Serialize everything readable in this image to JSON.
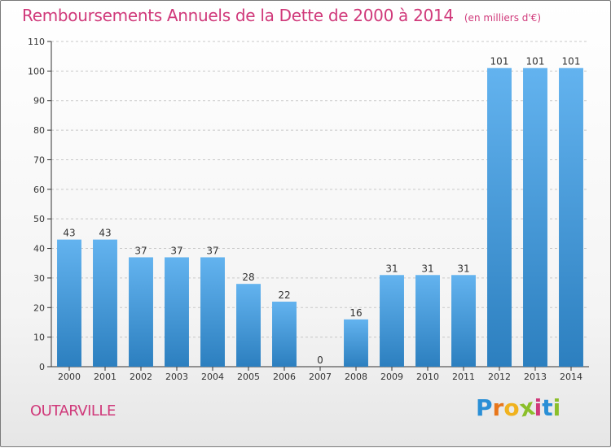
{
  "header": {
    "title": "Remboursements Annuels de la Dette de 2000 à 2014",
    "unit": "(en milliers d'€)"
  },
  "footer": {
    "commune": "OUTARVILLE",
    "brand_letters": [
      "P",
      "r",
      "o",
      "x",
      "i",
      "t",
      "i"
    ],
    "brand_colors": [
      "#2a8fd6",
      "#e8761a",
      "#f0b21e",
      "#8bbf2a",
      "#d0397a",
      "#2a8fd6",
      "#8bbf2a"
    ]
  },
  "colors": {
    "bar_light": "#63b3ef",
    "bar_dark": "#2c7fbf",
    "title": "#d0397a",
    "grid": "#c8c8c8",
    "axis": "#333333"
  },
  "chart_data": {
    "type": "bar",
    "title": "Remboursements Annuels de la Dette de 2000 à 2014",
    "xlabel": "",
    "ylabel": "",
    "ylim": [
      0,
      110
    ],
    "yticks": [
      0,
      10,
      20,
      30,
      40,
      50,
      60,
      70,
      80,
      90,
      100,
      110
    ],
    "grid": true,
    "categories": [
      "2000",
      "2001",
      "2002",
      "2003",
      "2004",
      "2005",
      "2006",
      "2007",
      "2008",
      "2009",
      "2010",
      "2011",
      "2012",
      "2013",
      "2014"
    ],
    "values": [
      43,
      43,
      37,
      37,
      37,
      28,
      22,
      0,
      16,
      31,
      31,
      31,
      101,
      101,
      101
    ]
  }
}
